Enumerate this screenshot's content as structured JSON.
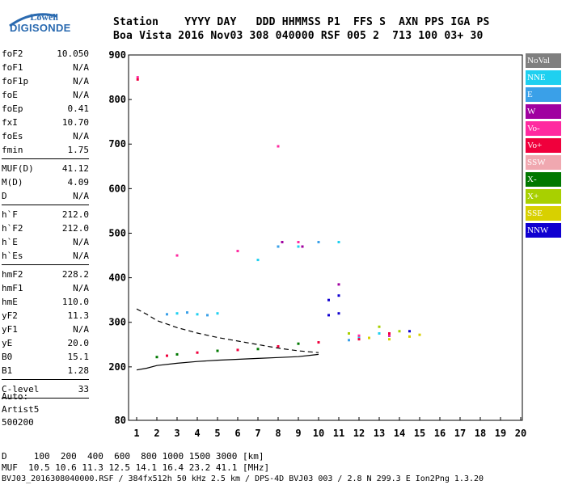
{
  "logo": {
    "line1": "Lowell",
    "line2": "DIGISONDE"
  },
  "header": {
    "line1": "Station    YYYY DAY   DDD HHMMSS P1  FFS S  AXN PPS IGA PS",
    "line2": "Boa Vista 2016 Nov03 308 040000 RSF 005 2  713 100 03+ 30"
  },
  "params": [
    {
      "label": "foF2",
      "value": "10.050"
    },
    {
      "label": "foF1",
      "value": "N/A"
    },
    {
      "label": "foF1p",
      "value": "N/A"
    },
    {
      "label": "foE",
      "value": "N/A"
    },
    {
      "label": "foEp",
      "value": "0.41"
    },
    {
      "label": "fxI",
      "value": "10.70"
    },
    {
      "label": "foEs",
      "value": "N/A"
    },
    {
      "label": "fmin",
      "value": "1.75"
    },
    {
      "sep": true
    },
    {
      "label": "MUF(D)",
      "value": "41.12"
    },
    {
      "label": "M(D)",
      "value": "4.09"
    },
    {
      "label": "D",
      "value": "N/A"
    },
    {
      "sep": true
    },
    {
      "label": "h`F",
      "value": "212.0"
    },
    {
      "label": "h`F2",
      "value": "212.0"
    },
    {
      "label": "h`E",
      "value": "N/A"
    },
    {
      "label": "h`Es",
      "value": "N/A"
    },
    {
      "sep": true
    },
    {
      "label": "hmF2",
      "value": "228.2"
    },
    {
      "label": "hmF1",
      "value": "N/A"
    },
    {
      "label": "hmE",
      "value": "110.0"
    },
    {
      "label": "yF2",
      "value": "11.3"
    },
    {
      "label": "yF1",
      "value": "N/A"
    },
    {
      "label": "yE",
      "value": "20.0"
    },
    {
      "label": "B0",
      "value": "15.1"
    },
    {
      "label": "B1",
      "value": "1.28"
    },
    {
      "sep": true
    },
    {
      "label": "C-level",
      "value": "33"
    },
    {
      "sep": true
    }
  ],
  "auto": {
    "line1": "Auto:",
    "line2": "Artist5",
    "line3": "500200"
  },
  "legend": [
    {
      "label": "NoVal",
      "color": "#7f7f7f"
    },
    {
      "label": "NNE",
      "color": "#1fd0f0"
    },
    {
      "label": "E",
      "color": "#3aa0e8"
    },
    {
      "label": "W",
      "color": "#a000a0"
    },
    {
      "label": "Vo-",
      "color": "#ff2aa0"
    },
    {
      "label": "Vo+",
      "color": "#f0003c"
    },
    {
      "label": "SSW",
      "color": "#f0a8b0"
    },
    {
      "label": "X-",
      "color": "#007800"
    },
    {
      "label": "X+",
      "color": "#a8d000"
    },
    {
      "label": "SSE",
      "color": "#d8d000"
    },
    {
      "label": "NNW",
      "color": "#1000d0"
    }
  ],
  "footer": {
    "line1": "D     100  200  400  600  800 1000 1500 3000 [km]",
    "line2": "MUF  10.5 10.6 11.3 12.5 14.1 16.4 23.2 41.1 [MHz]",
    "line3": "BVJ03_2016308040000.RSF / 384fx512h 50 kHz 2.5 km / DPS-4D BVJ03 003 / 2.8 N 299.3 E Ion2Png 1.3.20"
  },
  "chart_data": {
    "type": "scatter",
    "xlabel": "",
    "ylabel": "",
    "xlim": [
      1,
      20
    ],
    "ylim": [
      80,
      900
    ],
    "x_ticks": [
      1,
      2,
      3,
      4,
      5,
      6,
      7,
      8,
      9,
      10,
      11,
      12,
      13,
      14,
      15,
      16,
      17,
      18,
      19,
      20
    ],
    "y_ticks": [
      80,
      200,
      300,
      400,
      500,
      600,
      700,
      800,
      900
    ],
    "grid": false,
    "legend_position": "right",
    "series": [
      {
        "name": "NNE",
        "points": [
          [
            3.0,
            320
          ],
          [
            4.0,
            318
          ],
          [
            5.0,
            320
          ],
          [
            7.0,
            440
          ],
          [
            9.0,
            470
          ],
          [
            11.0,
            480
          ],
          [
            12.0,
            265
          ],
          [
            13.0,
            275
          ]
        ]
      },
      {
        "name": "E",
        "points": [
          [
            2.5,
            318
          ],
          [
            3.5,
            322
          ],
          [
            4.5,
            316
          ],
          [
            8.0,
            470
          ],
          [
            10.0,
            480
          ],
          [
            11.5,
            260
          ]
        ]
      },
      {
        "name": "W",
        "points": [
          [
            8.2,
            480
          ],
          [
            9.2,
            470
          ],
          [
            11.0,
            385
          ],
          [
            13.5,
            270
          ]
        ]
      },
      {
        "name": "Vo-",
        "points": [
          [
            1.05,
            850
          ],
          [
            3.0,
            450
          ],
          [
            6.0,
            460
          ],
          [
            8.0,
            695
          ],
          [
            9.0,
            480
          ],
          [
            12.0,
            270
          ],
          [
            13.5,
            272
          ]
        ]
      },
      {
        "name": "Vo+",
        "points": [
          [
            1.05,
            845
          ],
          [
            2.5,
            225
          ],
          [
            4.0,
            232
          ],
          [
            6.0,
            238
          ],
          [
            8.0,
            246
          ],
          [
            10.0,
            255
          ],
          [
            12.0,
            262
          ],
          [
            13.5,
            275
          ]
        ]
      },
      {
        "name": "X-",
        "points": [
          [
            2.0,
            222
          ],
          [
            3.0,
            228
          ],
          [
            5.0,
            236
          ],
          [
            7.0,
            240
          ],
          [
            9.0,
            252
          ]
        ]
      },
      {
        "name": "X+",
        "points": [
          [
            11.5,
            275
          ],
          [
            13.0,
            290
          ],
          [
            14.0,
            280
          ]
        ]
      },
      {
        "name": "SSE",
        "points": [
          [
            12.5,
            265
          ],
          [
            13.5,
            262
          ],
          [
            14.5,
            268
          ],
          [
            15.0,
            272
          ]
        ]
      },
      {
        "name": "NNW",
        "points": [
          [
            10.5,
            350
          ],
          [
            11.0,
            360
          ],
          [
            10.5,
            316
          ],
          [
            11.0,
            320
          ],
          [
            14.5,
            280
          ]
        ]
      }
    ],
    "trace_curves": [
      {
        "style": "dashed",
        "points": [
          [
            1.0,
            330
          ],
          [
            1.5,
            318
          ],
          [
            2.0,
            304
          ],
          [
            3.0,
            288
          ],
          [
            4.0,
            276
          ],
          [
            5.0,
            266
          ],
          [
            6.0,
            258
          ],
          [
            7.0,
            250
          ],
          [
            8.0,
            242
          ],
          [
            9.0,
            236
          ],
          [
            10.0,
            232
          ]
        ]
      },
      {
        "style": "solid",
        "points": [
          [
            1.0,
            193
          ],
          [
            1.5,
            197
          ],
          [
            2.0,
            203
          ],
          [
            3.0,
            208
          ],
          [
            4.0,
            212
          ],
          [
            5.0,
            215
          ],
          [
            6.0,
            217
          ],
          [
            7.0,
            219
          ],
          [
            8.0,
            221
          ],
          [
            9.0,
            223
          ],
          [
            10.0,
            228
          ]
        ]
      }
    ]
  }
}
